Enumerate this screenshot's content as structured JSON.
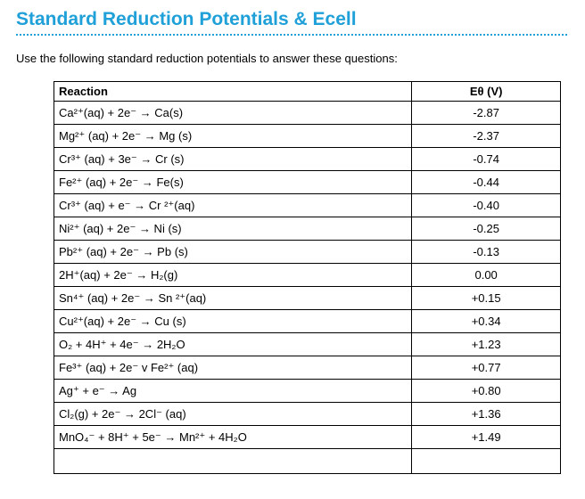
{
  "title": "Standard Reduction Potentials & Ecell",
  "intro": "Use the following standard reduction potentials to answer these questions:",
  "table": {
    "headers": {
      "reaction": "Reaction",
      "potential": "Eθ (V)"
    },
    "rows": [
      {
        "reaction": "Ca²⁺(aq) + 2e⁻ → Ca(s)",
        "potential": "-2.87"
      },
      {
        "reaction": "Mg²⁺ (aq) + 2e⁻ → Mg (s)",
        "potential": "-2.37"
      },
      {
        "reaction": "Cr³⁺ (aq) + 3e⁻ → Cr (s)",
        "potential": "-0.74"
      },
      {
        "reaction": "Fe²⁺ (aq) + 2e⁻ → Fe(s)",
        "potential": "-0.44"
      },
      {
        "reaction": "Cr³⁺ (aq) + e⁻ → Cr ²⁺(aq)",
        "potential": "-0.40"
      },
      {
        "reaction": "Ni²⁺ (aq) + 2e⁻ → Ni (s)",
        "potential": "-0.25"
      },
      {
        "reaction": "Pb²⁺ (aq) + 2e⁻ → Pb (s)",
        "potential": "-0.13"
      },
      {
        "reaction": "2H⁺(aq) + 2e⁻ → H₂(g)",
        "potential": "0.00"
      },
      {
        "reaction": "Sn⁴⁺ (aq) + 2e⁻ → Sn ²⁺(aq)",
        "potential": "+0.15"
      },
      {
        "reaction": "Cu²⁺(aq) + 2e⁻ → Cu (s)",
        "potential": "+0.34"
      },
      {
        "reaction": "O₂ + 4H⁺ + 4e⁻ → 2H₂O",
        "potential": "+1.23"
      },
      {
        "reaction": "Fe³⁺ (aq) + 2e⁻ v Fe²⁺ (aq)",
        "potential": "+0.77"
      },
      {
        "reaction": "Ag⁺ + e⁻ → Ag",
        "potential": "+0.80"
      },
      {
        "reaction": "Cl₂(g) + 2e⁻ → 2Cl⁻ (aq)",
        "potential": "+1.36"
      },
      {
        "reaction": "MnO₄⁻ + 8H⁺ + 5e⁻ → Mn²⁺ + 4H₂O",
        "potential": "+1.49"
      },
      {
        "reaction": "",
        "potential": ""
      }
    ]
  }
}
